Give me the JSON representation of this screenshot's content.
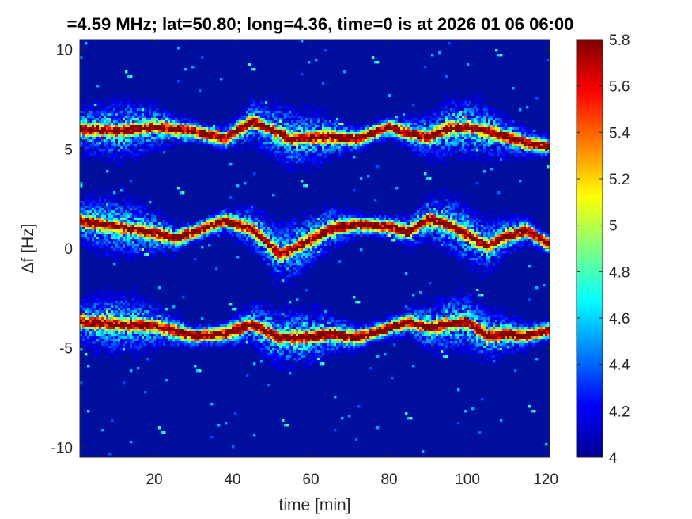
{
  "chart_data": {
    "type": "heatmap",
    "title": "=4.59 MHz;  lat=50.80; long=4.36, time=0 is at 2026 01 06 06:00",
    "xlabel": "time [min]",
    "ylabel": "Δf [Hz]",
    "xlim": [
      1,
      121
    ],
    "ylim": [
      -10.5,
      10.5
    ],
    "x_ticks": [
      20,
      40,
      60,
      80,
      100,
      120
    ],
    "y_ticks": [
      -10,
      -5,
      0,
      5,
      10
    ],
    "y_tick_labels": [
      "-10",
      "-5",
      "0",
      "5",
      "10"
    ],
    "colorbar": {
      "range": [
        4,
        5.8
      ],
      "ticks": [
        4,
        4.2,
        4.4,
        4.6,
        4.8,
        5,
        5.2,
        5.4,
        5.6,
        5.8
      ],
      "tick_labels": [
        "4",
        "4.2",
        "4.4",
        "4.6",
        "4.8",
        "5",
        "5.2",
        "5.4",
        "5.6",
        "5.8"
      ],
      "colormap": "jet"
    },
    "background_level": 4.05,
    "traces": [
      {
        "time": [
          1,
          10,
          20,
          30,
          38,
          45,
          55,
          65,
          72,
          80,
          85,
          90,
          95,
          100,
          105,
          110,
          115,
          121
        ],
        "df": [
          6.0,
          5.9,
          6.1,
          5.9,
          5.5,
          6.4,
          5.5,
          5.6,
          5.5,
          6.1,
          5.8,
          5.6,
          6.0,
          6.1,
          5.9,
          5.6,
          5.3,
          5.1
        ]
      },
      {
        "time": [
          1,
          10,
          20,
          25,
          30,
          38,
          45,
          52,
          58,
          65,
          72,
          80,
          85,
          90,
          95,
          100,
          105,
          110,
          115,
          121
        ],
        "df": [
          1.4,
          1.1,
          0.8,
          0.5,
          0.8,
          1.4,
          1.0,
          -0.3,
          0.2,
          1.0,
          1.2,
          1.1,
          0.8,
          1.5,
          1.2,
          0.7,
          0.1,
          0.6,
          0.9,
          0.2
        ]
      },
      {
        "time": [
          1,
          10,
          20,
          30,
          38,
          45,
          52,
          58,
          65,
          72,
          80,
          85,
          90,
          95,
          100,
          105,
          110,
          115,
          121
        ],
        "df": [
          -3.7,
          -3.8,
          -3.9,
          -4.4,
          -4.3,
          -3.8,
          -4.5,
          -4.5,
          -4.3,
          -4.5,
          -4.0,
          -3.7,
          -4.0,
          -3.8,
          -3.7,
          -4.4,
          -4.3,
          -4.4,
          -4.1
        ]
      }
    ]
  }
}
